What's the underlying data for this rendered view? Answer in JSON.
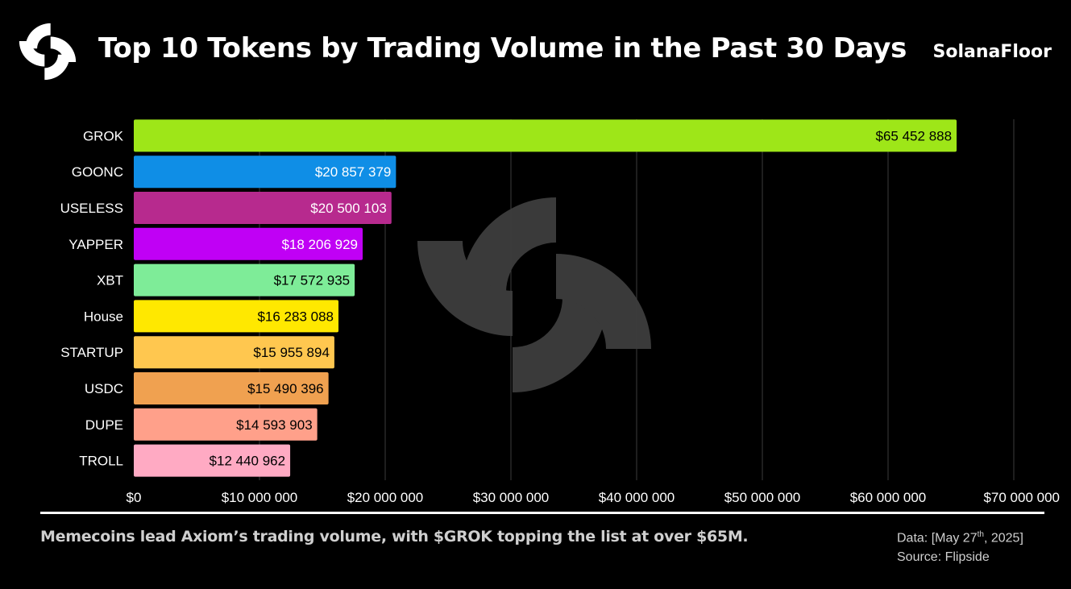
{
  "header": {
    "title": "Top 10 Tokens by Trading Volume in the Past 30 Days",
    "brand": "SolanaFloor"
  },
  "footer": {
    "caption": "Memecoins lead Axiom’s trading volume, with $GROK topping the list at over $65M.",
    "data_prefix": "Data: [May 27",
    "data_sup": "th",
    "data_suffix": ", 2025]",
    "source": "Source: Flipside"
  },
  "chart_data": {
    "type": "bar",
    "orientation": "horizontal",
    "title": "Top 10 Tokens by Trading Volume in the Past 30 Days",
    "xlabel": "",
    "ylabel": "",
    "xlim": [
      0,
      70000000
    ],
    "grid": true,
    "categories": [
      "GROK",
      "GOONC",
      "USELESS",
      "YAPPER",
      "XBT",
      "House",
      "STARTUP",
      "USDC",
      "DUPE",
      "TROLL"
    ],
    "values": [
      65452888,
      20857379,
      20500103,
      18206929,
      17572935,
      16283088,
      15955894,
      15490396,
      14593903,
      12440962
    ],
    "value_labels": [
      "$65 452 888",
      "$20 857 379",
      "$20 500 103",
      "$18 206 929",
      "$17 572 935",
      "$16 283 088",
      "$15 955 894",
      "$15 490 396",
      "$14 593 903",
      "$12 440 962"
    ],
    "colors": [
      "#9ee618",
      "#0f8ee6",
      "#b72a8e",
      "#c000f5",
      "#7eec98",
      "#ffe800",
      "#ffc74f",
      "#f0a150",
      "#ffa08a",
      "#ffaac3"
    ],
    "label_colors": [
      "#000000",
      "#ffffff",
      "#ffffff",
      "#ffffff",
      "#000000",
      "#000000",
      "#000000",
      "#000000",
      "#000000",
      "#000000"
    ],
    "x_ticks": [
      0,
      10000000,
      20000000,
      30000000,
      40000000,
      50000000,
      60000000,
      70000000
    ],
    "x_tick_labels": [
      "$0",
      "$10 000 000",
      "$20 000 000",
      "$30 000 000",
      "$40 000 000",
      "$50 000 000",
      "$60 000 000",
      "$70 000 000"
    ]
  }
}
